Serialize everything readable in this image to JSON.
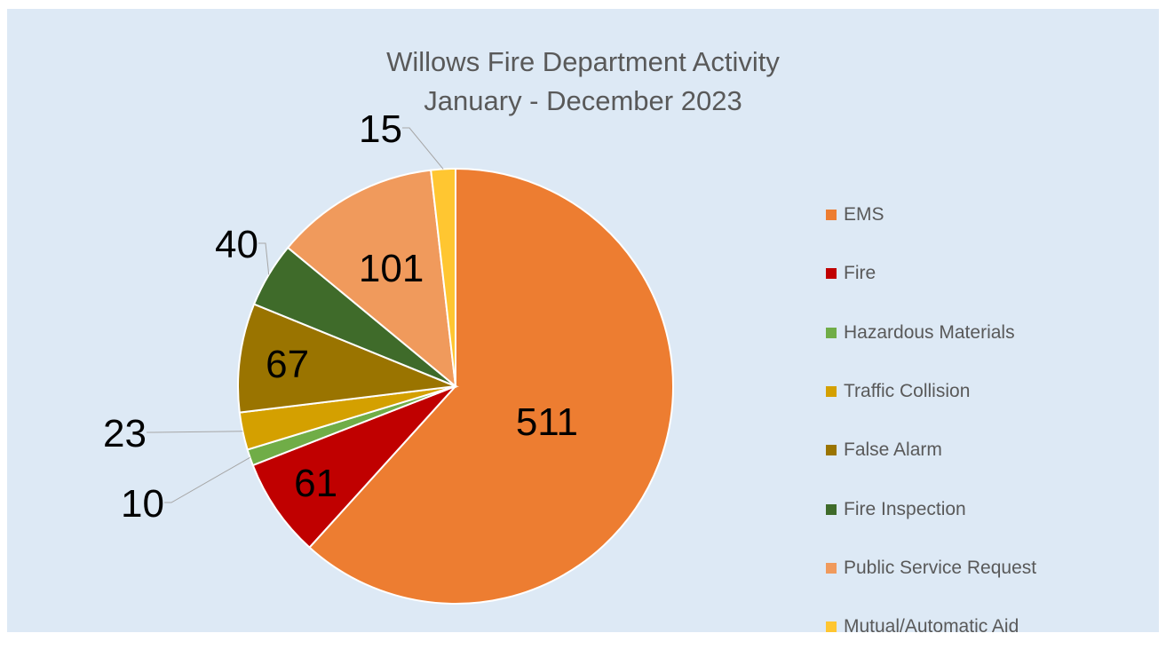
{
  "chart_data": {
    "type": "pie",
    "title": "Willows Fire Department Activity",
    "subtitle": "January - December 2023",
    "categories": [
      "EMS",
      "Fire",
      "Hazardous Materials",
      "Traffic Collision",
      "False Alarm",
      "Fire Inspection",
      "Public Service Request",
      "Mutual/Automatic Aid"
    ],
    "values": [
      511,
      61,
      10,
      23,
      67,
      40,
      101,
      15
    ],
    "colors": [
      "#ed7d31",
      "#c00000",
      "#70ad47",
      "#d4a000",
      "#9a7400",
      "#3f6b2a",
      "#f09a5c",
      "#ffc631"
    ],
    "data_labels": [
      "511",
      "61",
      "10",
      "23",
      "67",
      "40",
      "101",
      "15"
    ],
    "legend_position": "right"
  }
}
